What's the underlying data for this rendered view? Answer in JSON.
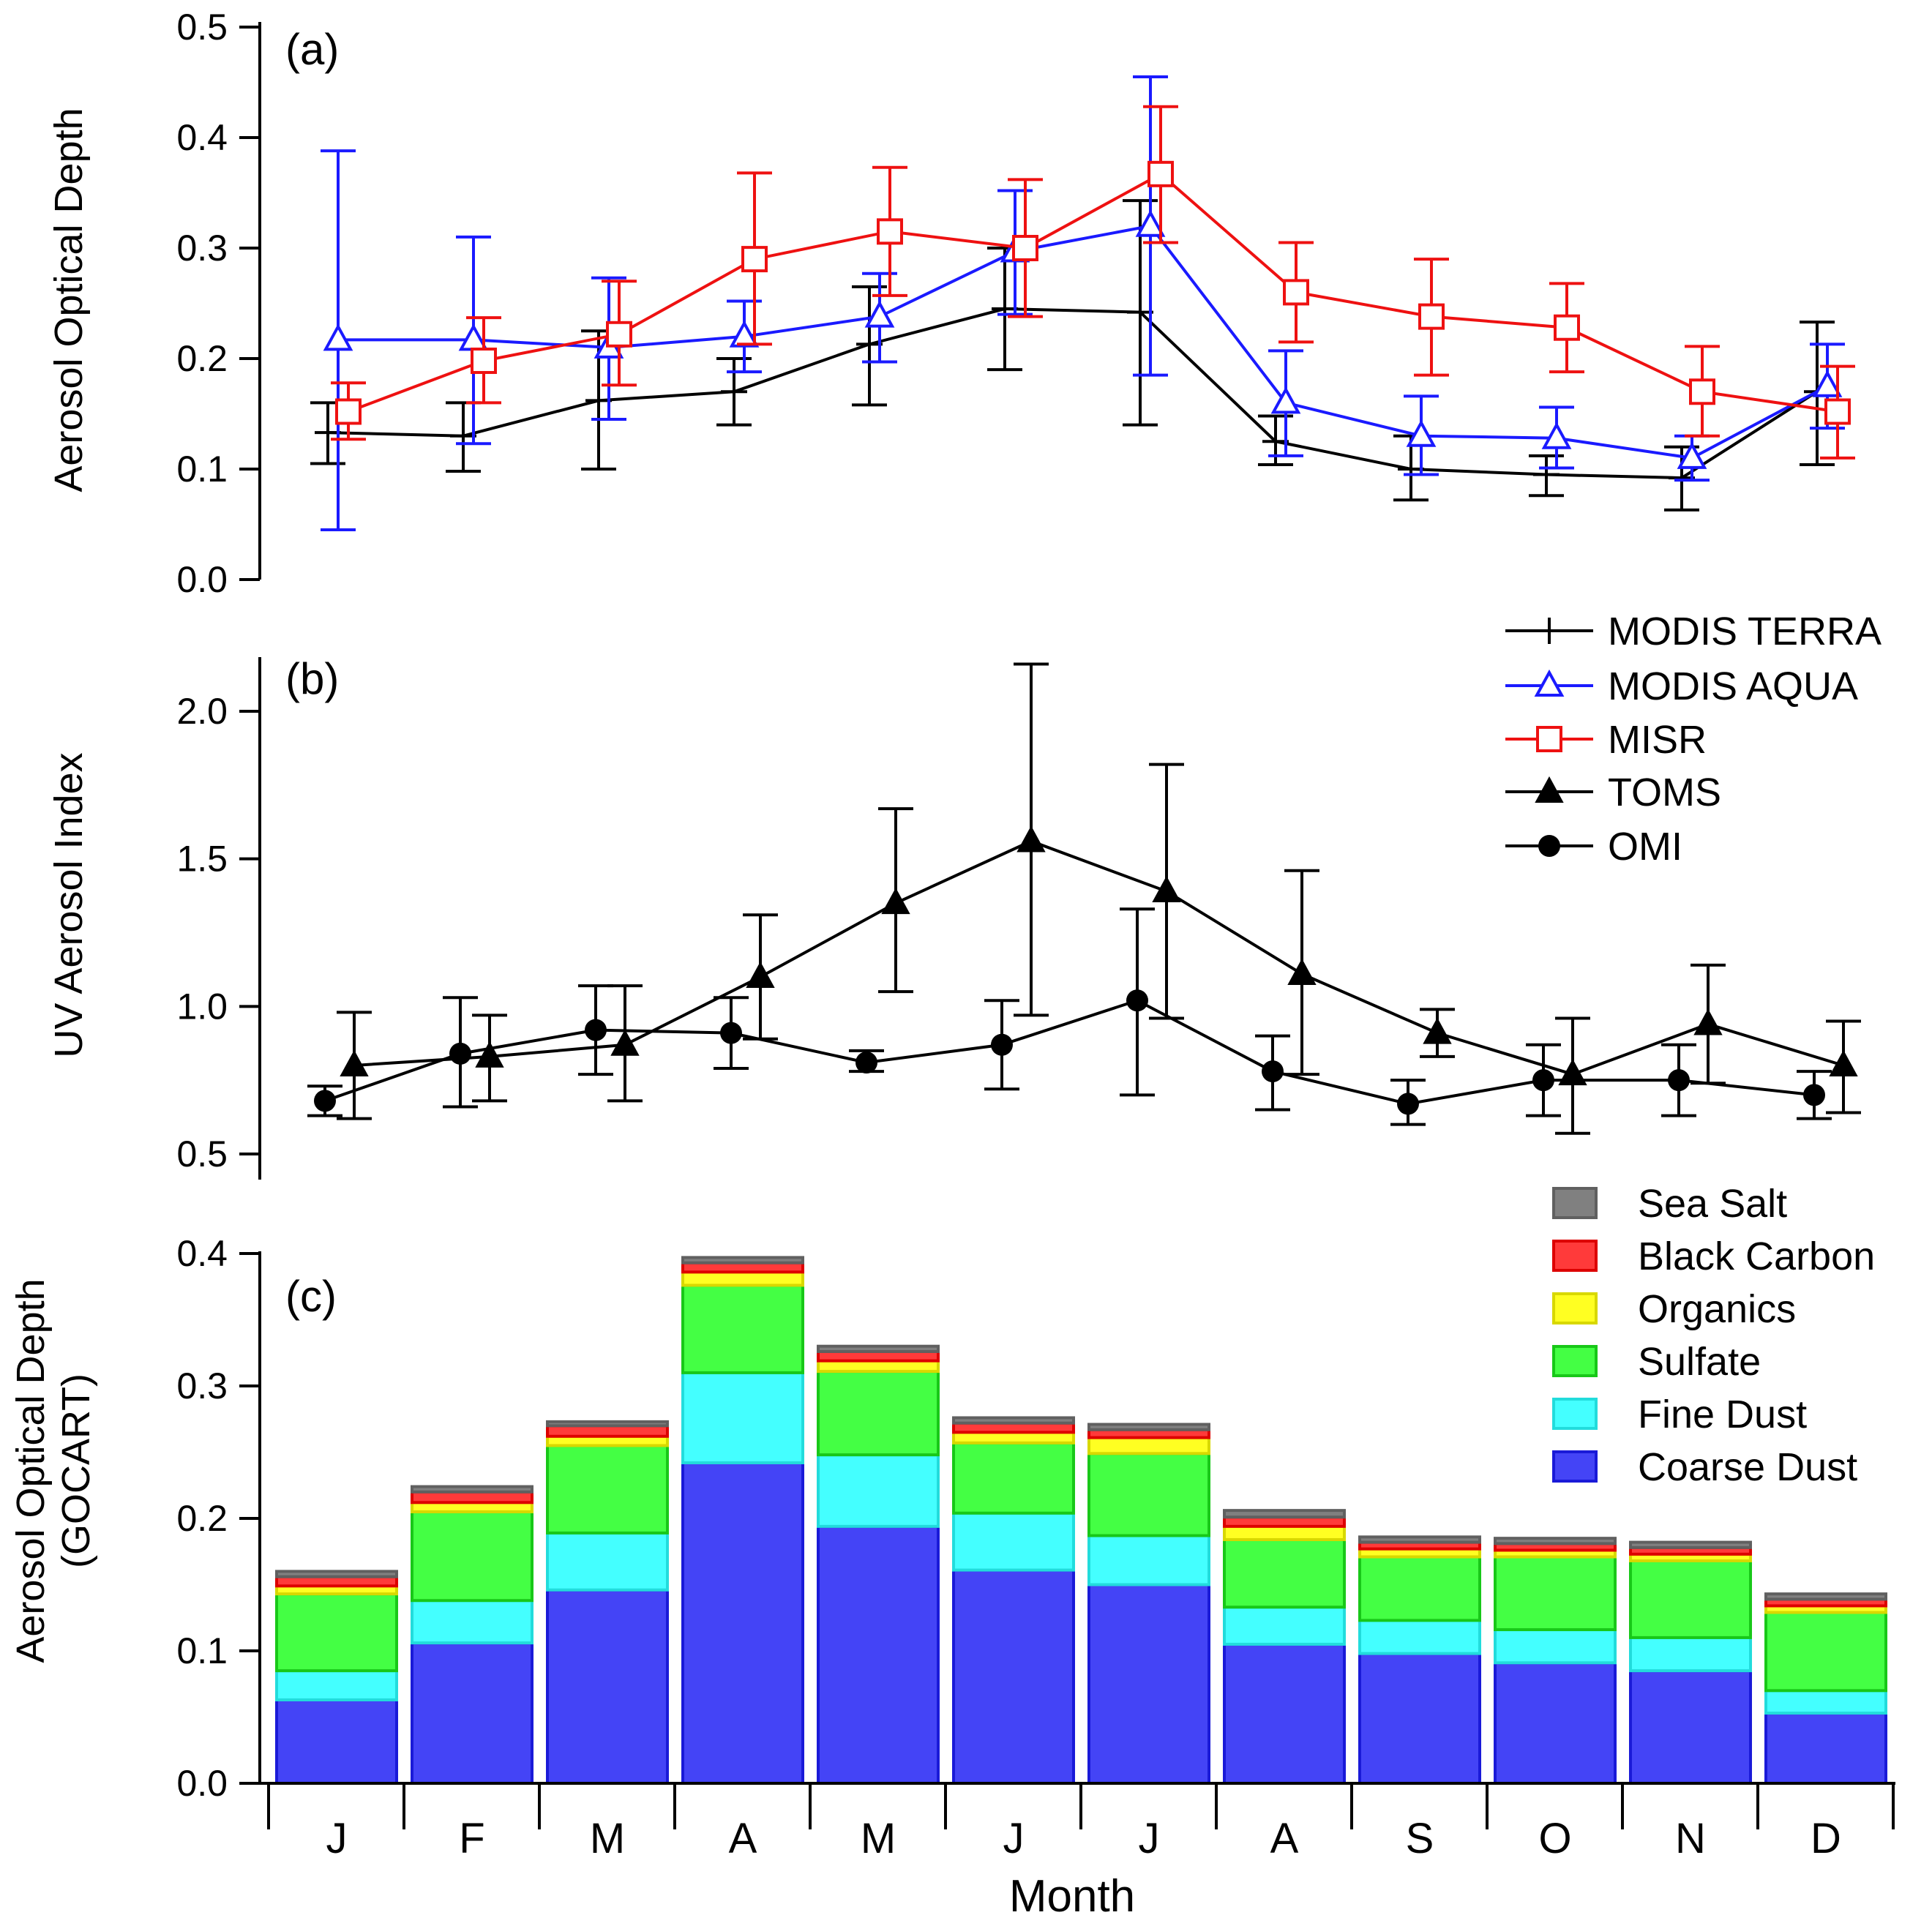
{
  "chart_data": [
    {
      "panel": "(a)",
      "type": "line",
      "ylabel": "Aerosol Optical Depth",
      "xlabel": "",
      "ylim": [
        0.0,
        0.5
      ],
      "yticks": [
        "0.0",
        "0.1",
        "0.2",
        "0.3",
        "0.4",
        "0.5"
      ],
      "grid": false,
      "series": [
        {
          "name": "MODIS TERRA",
          "color": "#000000",
          "marker": "plus",
          "values": [
            0.133,
            0.13,
            0.162,
            0.17,
            0.213,
            0.245,
            0.242,
            0.125,
            0.1,
            0.095,
            0.092,
            0.17
          ],
          "err_low": [
            0.105,
            0.098,
            0.1,
            0.14,
            0.158,
            0.19,
            0.14,
            0.104,
            0.072,
            0.076,
            0.063,
            0.104
          ],
          "err_high": [
            0.16,
            0.16,
            0.225,
            0.2,
            0.265,
            0.3,
            0.343,
            0.148,
            0.13,
            0.112,
            0.12,
            0.233
          ]
        },
        {
          "name": "MODIS AQUA",
          "color": "#1a1aff",
          "marker": "triangle-open",
          "values": [
            0.217,
            0.217,
            0.21,
            0.22,
            0.238,
            0.297,
            0.32,
            0.16,
            0.13,
            0.128,
            0.11,
            0.175
          ],
          "err_low": [
            0.045,
            0.123,
            0.145,
            0.188,
            0.197,
            0.24,
            0.185,
            0.112,
            0.095,
            0.101,
            0.09,
            0.137
          ],
          "err_high": [
            0.388,
            0.31,
            0.273,
            0.252,
            0.277,
            0.352,
            0.455,
            0.207,
            0.166,
            0.156,
            0.13,
            0.213
          ]
        },
        {
          "name": "MISR",
          "color": "#ee1111",
          "marker": "square-open",
          "values": [
            0.152,
            0.198,
            0.222,
            0.29,
            0.315,
            0.3,
            0.367,
            0.26,
            0.238,
            0.228,
            0.17,
            0.152
          ],
          "err_low": [
            0.127,
            0.16,
            0.176,
            0.213,
            0.257,
            0.238,
            0.305,
            0.215,
            0.185,
            0.188,
            0.13,
            0.11
          ],
          "err_high": [
            0.178,
            0.237,
            0.27,
            0.368,
            0.373,
            0.362,
            0.428,
            0.305,
            0.29,
            0.268,
            0.211,
            0.193
          ]
        }
      ]
    },
    {
      "panel": "(b)",
      "type": "line",
      "ylabel": "UV Aerosol Index",
      "xlabel": "",
      "ylim": [
        0.5,
        2.25
      ],
      "yticks": [
        "0.5",
        "1.0",
        "1.5",
        "2.0"
      ],
      "grid": false,
      "series": [
        {
          "name": "TOMS",
          "color": "#000000",
          "marker": "triangle-filled",
          "values": [
            0.8,
            0.83,
            0.87,
            1.1,
            1.35,
            1.56,
            1.39,
            1.11,
            0.91,
            0.77,
            0.94,
            0.8
          ],
          "err_low": [
            0.62,
            0.68,
            0.68,
            0.89,
            1.05,
            0.97,
            0.96,
            0.77,
            0.83,
            0.57,
            0.74,
            0.64
          ],
          "err_high": [
            0.98,
            0.97,
            1.07,
            1.31,
            1.67,
            2.16,
            1.82,
            1.46,
            0.99,
            0.96,
            1.14,
            0.95
          ]
        },
        {
          "name": "OMI",
          "color": "#000000",
          "marker": "circle-filled",
          "values": [
            0.68,
            0.84,
            0.92,
            0.91,
            0.81,
            0.87,
            1.02,
            0.78,
            0.67,
            0.75,
            0.75,
            0.7
          ],
          "err_low": [
            0.63,
            0.66,
            0.77,
            0.79,
            0.78,
            0.72,
            0.7,
            0.65,
            0.6,
            0.63,
            0.63,
            0.62
          ],
          "err_high": [
            0.73,
            1.03,
            1.07,
            1.03,
            0.85,
            1.02,
            1.33,
            0.9,
            0.75,
            0.87,
            0.87,
            0.78
          ]
        }
      ]
    },
    {
      "panel": "(c)",
      "type": "bar",
      "stacked": true,
      "ylabel_lines": [
        "Aerosol Optical Depth",
        "(GOCART)"
      ],
      "xlabel": "Month",
      "ylim": [
        0.0,
        0.4
      ],
      "yticks": [
        "0.0",
        "0.1",
        "0.2",
        "0.3",
        "0.4"
      ],
      "grid": false,
      "series": [
        {
          "name": "Coarse Dust",
          "fill": "#4444f6",
          "edge": "#1a1ad8",
          "values": [
            0.063,
            0.106,
            0.146,
            0.242,
            0.194,
            0.161,
            0.15,
            0.105,
            0.098,
            0.091,
            0.085,
            0.053
          ]
        },
        {
          "name": "Fine Dust",
          "fill": "#44ffff",
          "edge": "#22dcdc",
          "values": [
            0.022,
            0.032,
            0.043,
            0.068,
            0.054,
            0.043,
            0.037,
            0.028,
            0.025,
            0.025,
            0.025,
            0.017
          ]
        },
        {
          "name": "Sulfate",
          "fill": "#44ff44",
          "edge": "#18c818",
          "values": [
            0.058,
            0.067,
            0.066,
            0.066,
            0.063,
            0.053,
            0.062,
            0.051,
            0.048,
            0.055,
            0.058,
            0.059
          ]
        },
        {
          "name": "Organics",
          "fill": "#ffff22",
          "edge": "#d8d800",
          "values": [
            0.006,
            0.007,
            0.007,
            0.01,
            0.008,
            0.008,
            0.012,
            0.01,
            0.006,
            0.005,
            0.005,
            0.005
          ]
        },
        {
          "name": "Black Carbon",
          "fill": "#ff3a3a",
          "edge": "#dd0000",
          "values": [
            0.007,
            0.008,
            0.008,
            0.007,
            0.007,
            0.007,
            0.006,
            0.007,
            0.005,
            0.005,
            0.005,
            0.005
          ]
        },
        {
          "name": "Sea Salt",
          "fill": "#808080",
          "edge": "#606060",
          "values": [
            0.004,
            0.004,
            0.003,
            0.004,
            0.004,
            0.004,
            0.004,
            0.005,
            0.004,
            0.004,
            0.004,
            0.004
          ]
        }
      ]
    }
  ],
  "months": [
    "J",
    "F",
    "M",
    "A",
    "M",
    "J",
    "J",
    "A",
    "S",
    "O",
    "N",
    "D"
  ],
  "legends": {
    "lines": [
      "MODIS TERRA",
      "MODIS AQUA",
      "MISR",
      "TOMS",
      "OMI"
    ],
    "bars": [
      "Sea Salt",
      "Black Carbon",
      "Organics",
      "Sulfate",
      "Fine Dust",
      "Coarse Dust"
    ]
  }
}
